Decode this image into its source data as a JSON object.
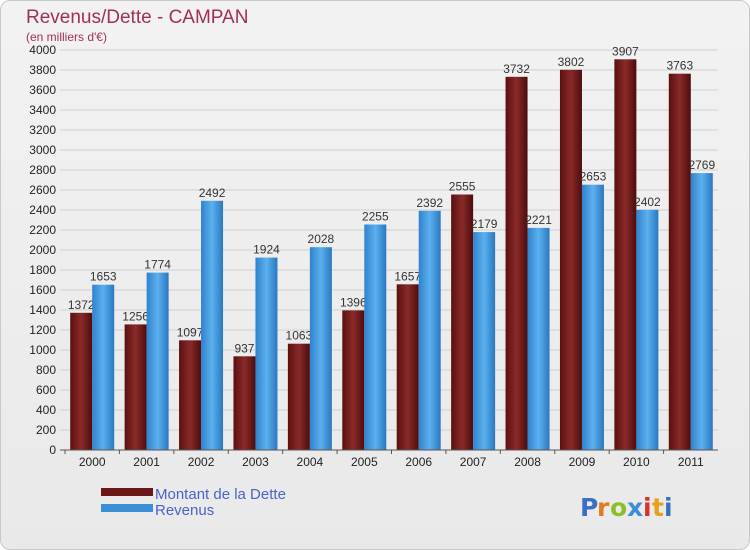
{
  "chart_data": {
    "type": "bar",
    "title": "Revenus/Dette - CAMPAN",
    "subtitle": "(en milliers d'€)",
    "categories": [
      "2000",
      "2001",
      "2002",
      "2003",
      "2004",
      "2005",
      "2006",
      "2007",
      "2008",
      "2009",
      "2010",
      "2011"
    ],
    "series": [
      {
        "name": "Montant de la Dette",
        "color": "#6b1717",
        "values": [
          1372,
          1256,
          1097,
          937,
          1063,
          1396,
          1657,
          2555,
          3732,
          3802,
          3907,
          3763
        ]
      },
      {
        "name": "Revenus",
        "color": "#3b8fd6",
        "values": [
          1653,
          1774,
          2492,
          1924,
          2028,
          2255,
          2392,
          2179,
          2221,
          2653,
          2402,
          2769
        ]
      }
    ],
    "ylim": [
      0,
      4000
    ],
    "ytick_step": 200,
    "grid": true,
    "legend": "bottom-left"
  },
  "watermark": "Proxiti"
}
